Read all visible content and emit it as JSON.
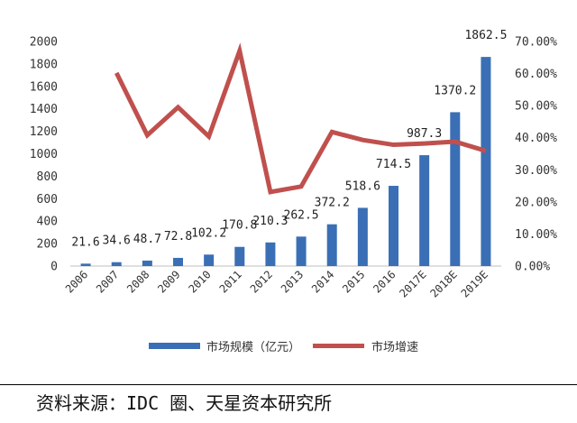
{
  "chart_data": {
    "type": "bar+line",
    "categories": [
      "2006",
      "2007",
      "2008",
      "2009",
      "2010",
      "2011",
      "2012",
      "2013",
      "2014",
      "2015",
      "2016",
      "2017E",
      "2018E",
      "2019E"
    ],
    "series": [
      {
        "name": "市场规模（亿元）",
        "type": "bar",
        "axis": "left",
        "color": "#3a6fb5",
        "values": [
          21.6,
          34.6,
          48.7,
          72.8,
          102.2,
          170.8,
          210.3,
          262.5,
          372.2,
          518.6,
          714.5,
          987.3,
          1370.2,
          1862.5
        ],
        "labels": [
          "21.6",
          "34.6",
          "48.7",
          "72.8",
          "102.2",
          "170.8",
          "210.3",
          "262.5",
          "372.2",
          "518.6",
          "714.5",
          "987.3",
          "1370.2",
          "1862.5"
        ]
      },
      {
        "name": "市场增速",
        "type": "line",
        "axis": "right",
        "color": "#c0504d",
        "values": [
          null,
          60.2,
          40.8,
          49.5,
          40.4,
          67.1,
          23.1,
          24.8,
          41.8,
          39.3,
          37.8,
          38.2,
          38.8,
          35.9
        ]
      }
    ],
    "y_left": {
      "lim": [
        0,
        2000
      ],
      "ticks": [
        "0",
        "200",
        "400",
        "600",
        "800",
        "1000",
        "1200",
        "1400",
        "1600",
        "1800",
        "2000"
      ]
    },
    "y_right": {
      "lim": [
        0,
        70
      ],
      "ticks": [
        "0.00%",
        "10.00%",
        "20.00%",
        "30.00%",
        "40.00%",
        "50.00%",
        "60.00%",
        "70.00%"
      ]
    },
    "grid": false,
    "legend_position": "bottom"
  },
  "source_text": "资料来源：IDC 圈、天星资本研究所"
}
